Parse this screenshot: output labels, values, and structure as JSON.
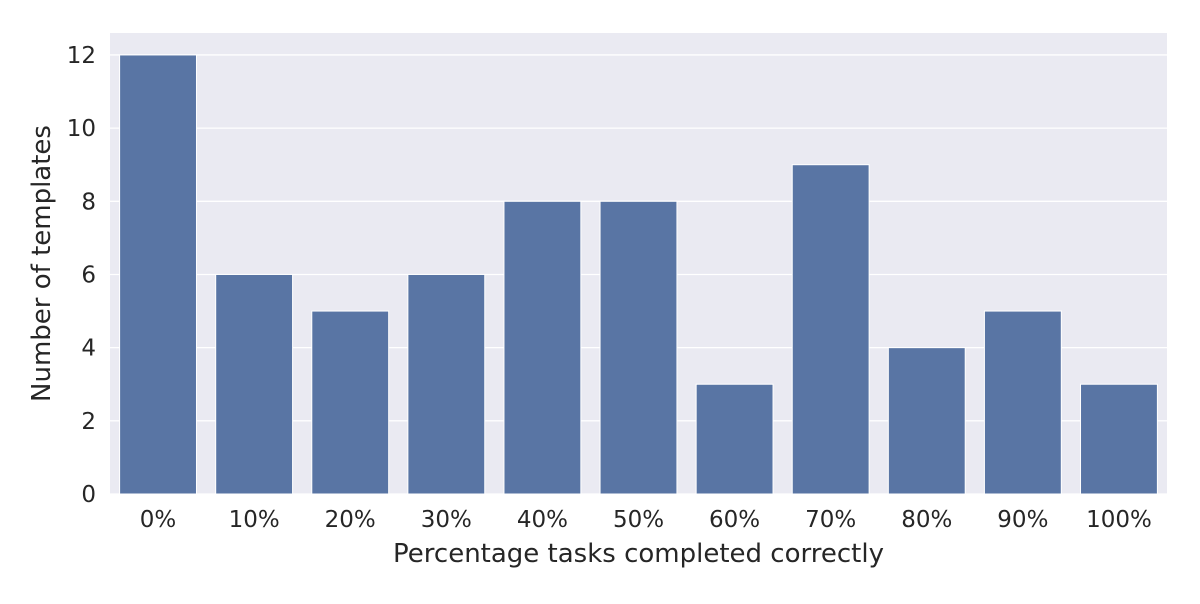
{
  "chart_data": {
    "type": "bar",
    "categories": [
      "0%",
      "10%",
      "20%",
      "30%",
      "40%",
      "50%",
      "60%",
      "70%",
      "80%",
      "90%",
      "100%"
    ],
    "values": [
      12,
      6,
      5,
      6,
      8,
      8,
      3,
      9,
      4,
      5,
      3
    ],
    "xlabel": "Percentage tasks completed correctly",
    "ylabel": "Number of templates",
    "ylim": [
      0,
      12.6
    ],
    "yticks": [
      0,
      2,
      4,
      6,
      8,
      10,
      12
    ],
    "grid": true,
    "legend": "none",
    "colors": {
      "bar": "#5975a4",
      "plot_background": "#eaeaf2",
      "grid": "#ffffff"
    }
  }
}
